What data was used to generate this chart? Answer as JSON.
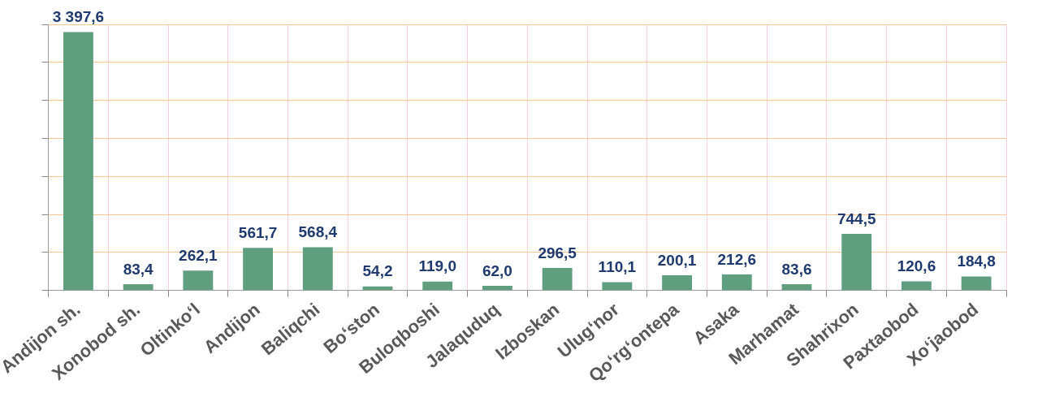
{
  "chart_data": {
    "type": "bar",
    "categories": [
      "Andijon sh.",
      "Xonobod sh.",
      "Oltinko‘l",
      "Andijon",
      "Baliqchi",
      "Bo‘ston",
      "Buloqboshi",
      "Jalaquduq",
      "Izboskan",
      "Ulug‘nor",
      "Qo‘rg‘ontepa",
      "Asaka",
      "Marhamat",
      "Shahrixon",
      "Paxtaobod",
      "Xo‘jaobod"
    ],
    "values": [
      3397.6,
      83.4,
      262.1,
      561.7,
      568.4,
      54.2,
      119.0,
      62.0,
      296.5,
      110.1,
      200.1,
      212.6,
      83.6,
      744.5,
      120.6,
      184.8
    ],
    "value_labels": [
      "3 397,6",
      "83,4",
      "262,1",
      "561,7",
      "568,4",
      "54,2",
      "119,0",
      "62,0",
      "296,5",
      "110,1",
      "200,1",
      "212,6",
      "83,6",
      "744,5",
      "120,6",
      "184,8"
    ],
    "color": "#5f9f80",
    "ylim": [
      0,
      3500
    ],
    "yticks": [
      {
        "value": 0,
        "label": null
      },
      {
        "value": 500,
        "label": null
      },
      {
        "value": 1000,
        "label": null
      },
      {
        "value": 1500,
        "label": null
      },
      {
        "value": 2000,
        "label": null
      },
      {
        "value": 2500,
        "label": null
      },
      {
        "value": 3000,
        "label": null
      },
      {
        "value": 3500,
        "label": null
      }
    ],
    "grid": true,
    "legend": false,
    "tick_labels": "x"
  }
}
